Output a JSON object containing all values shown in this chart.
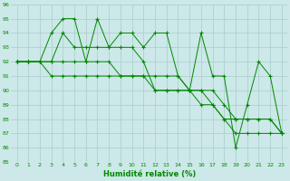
{
  "xlabel": "Humidité relative (%)",
  "xlim": [
    -0.5,
    23.5
  ],
  "ylim": [
    85,
    96
  ],
  "yticks": [
    85,
    86,
    87,
    88,
    89,
    90,
    91,
    92,
    93,
    94,
    95,
    96
  ],
  "xticks": [
    0,
    1,
    2,
    3,
    4,
    5,
    6,
    7,
    8,
    9,
    10,
    11,
    12,
    13,
    14,
    15,
    16,
    17,
    18,
    19,
    20,
    21,
    22,
    23
  ],
  "bg_color": "#cce8e8",
  "grid_color": "#aacccc",
  "line_color": "#008800",
  "series": [
    [
      92,
      92,
      92,
      94,
      95,
      95,
      92,
      95,
      93,
      94,
      94,
      93,
      94,
      94,
      91,
      90,
      94,
      91,
      91,
      86,
      89,
      92,
      91,
      87
    ],
    [
      92,
      92,
      92,
      92,
      94,
      93,
      93,
      93,
      93,
      93,
      93,
      92,
      90,
      90,
      90,
      90,
      90,
      89,
      88,
      88,
      88,
      88,
      88,
      87
    ],
    [
      92,
      92,
      92,
      92,
      92,
      92,
      92,
      92,
      92,
      91,
      91,
      91,
      91,
      91,
      91,
      90,
      90,
      90,
      89,
      88,
      88,
      88,
      88,
      87
    ],
    [
      92,
      92,
      92,
      91,
      91,
      91,
      91,
      91,
      91,
      91,
      91,
      91,
      90,
      90,
      90,
      90,
      89,
      89,
      88,
      87,
      87,
      87,
      87,
      87
    ]
  ]
}
